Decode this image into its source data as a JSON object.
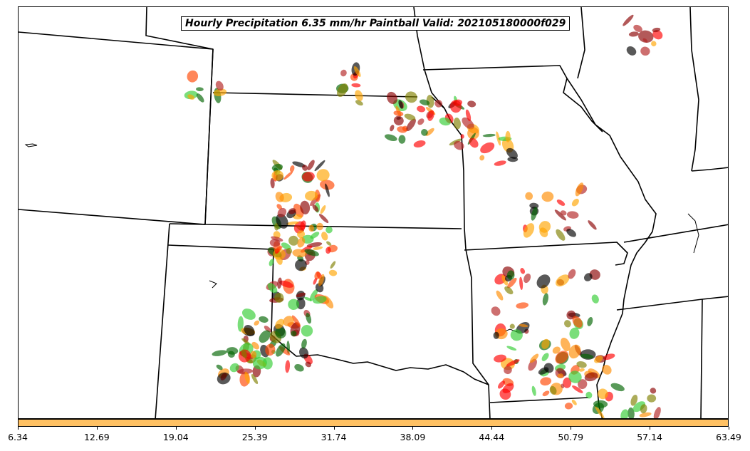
{
  "title": "Hourly Precipitation 6.35 mm/hr Paintball Valid: 202105180000f029",
  "colorbar": {
    "color": "#ffc163",
    "ticks": [
      "6.34",
      "12.69",
      "19.04",
      "25.39",
      "31.74",
      "38.09",
      "44.44",
      "50.79",
      "57.14",
      "63.49"
    ]
  },
  "palette": [
    "#32cd32",
    "#006400",
    "#8b0000",
    "#ff0000",
    "#ff8c00",
    "#ffa500",
    "#808000",
    "#000000",
    "#ff4500",
    "#b22222"
  ]
}
